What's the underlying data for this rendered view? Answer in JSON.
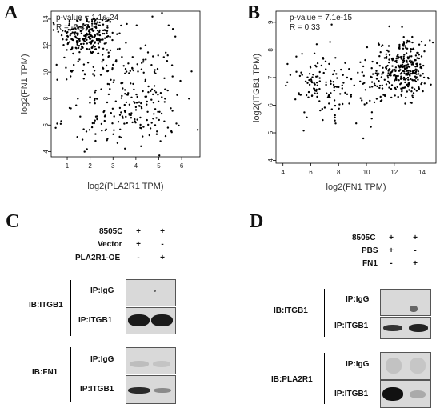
{
  "figure": {
    "panels": {
      "A": "A",
      "B": "B",
      "C": "C",
      "D": "D"
    }
  },
  "chart_data": [
    {
      "type": "scatter",
      "panel": "A",
      "title": "",
      "xlabel": "log2(PLA2R1 TPM)",
      "ylabel": "log2(FN1 TPM)",
      "xlim": [
        0.3,
        6.8
      ],
      "ylim": [
        3.6,
        14.6
      ],
      "xticks": [
        1,
        2,
        3,
        4,
        5,
        6
      ],
      "yticks": [
        4,
        6,
        8,
        10,
        12,
        14
      ],
      "annotations": [
        "p-value = 1.1e-24",
        "R = -0.47"
      ],
      "grid": false,
      "clusters": [
        {
          "cx": 1.9,
          "cy": 12.8,
          "sx": 0.6,
          "sy": 0.8,
          "n": 210
        },
        {
          "cx": 2.8,
          "cy": 10.5,
          "sx": 0.9,
          "sy": 1.3,
          "n": 90
        },
        {
          "cx": 4.2,
          "cy": 7.0,
          "sx": 0.9,
          "sy": 1.2,
          "n": 110
        },
        {
          "cx": 2.6,
          "cy": 6.5,
          "sx": 0.9,
          "sy": 1.0,
          "n": 55
        },
        {
          "cx": 5.2,
          "cy": 10.5,
          "sx": 0.7,
          "sy": 2.0,
          "n": 25
        }
      ]
    },
    {
      "type": "scatter",
      "panel": "B",
      "title": "",
      "xlabel": "log2(FN1 TPM)",
      "ylabel": "log2(ITGB1 TPM)",
      "xlim": [
        3.5,
        15
      ],
      "ylim": [
        3.9,
        9.4
      ],
      "xticks": [
        4,
        6,
        8,
        10,
        12,
        14
      ],
      "yticks": [
        4,
        5,
        6,
        7,
        8,
        9
      ],
      "annotations": [
        "p-value = 7.1e-15",
        "R = 0.33"
      ],
      "grid": false,
      "clusters": [
        {
          "cx": 12.8,
          "cy": 7.3,
          "sx": 0.9,
          "sy": 0.5,
          "n": 260
        },
        {
          "cx": 10.8,
          "cy": 7.0,
          "sx": 0.9,
          "sy": 0.6,
          "n": 70
        },
        {
          "cx": 6.8,
          "cy": 6.8,
          "sx": 1.1,
          "sy": 0.6,
          "n": 110
        },
        {
          "cx": 9.0,
          "cy": 6.2,
          "sx": 1.2,
          "sy": 0.9,
          "n": 25
        }
      ]
    }
  ],
  "blot_C": {
    "header_rows": [
      {
        "label": "8505C",
        "signs": [
          "+",
          "+"
        ]
      },
      {
        "label": "Vector",
        "signs": [
          "+",
          "-"
        ]
      },
      {
        "label": "PLA2R1-OE",
        "signs": [
          "-",
          "+"
        ]
      }
    ],
    "groups": [
      {
        "ib_label": "IB:ITGB1",
        "rows": [
          {
            "ip_label": "IP:IgG",
            "bands": [
              0.0,
              0.0
            ]
          },
          {
            "ip_label": "IP:ITGB1",
            "bands": [
              0.95,
              0.95
            ]
          }
        ]
      },
      {
        "ib_label": "IB:FN1",
        "rows": [
          {
            "ip_label": "IP:IgG",
            "bands": [
              0.1,
              0.08
            ]
          },
          {
            "ip_label": "IP:ITGB1",
            "bands": [
              0.85,
              0.35
            ]
          }
        ]
      }
    ]
  },
  "blot_D": {
    "header_rows": [
      {
        "label": "8505C",
        "signs": [
          "+",
          "+"
        ]
      },
      {
        "label": "PBS",
        "signs": [
          "+",
          "-"
        ]
      },
      {
        "label": "FN1",
        "signs": [
          "-",
          "+"
        ]
      }
    ],
    "groups": [
      {
        "ib_label": "IB:ITGB1",
        "rows": [
          {
            "ip_label": "IP:IgG",
            "bands": [
              0.0,
              0.35
            ]
          },
          {
            "ip_label": "IP:ITGB1",
            "bands": [
              0.8,
              0.85
            ]
          }
        ]
      },
      {
        "ib_label": "IB:PLA2R1",
        "rows": [
          {
            "ip_label": "IP:IgG",
            "bands": [
              0.1,
              0.12
            ]
          },
          {
            "ip_label": "IP:ITGB1",
            "bands": [
              0.95,
              0.3
            ]
          }
        ]
      }
    ]
  },
  "colors": {
    "point": "#000000",
    "blot_background": "#d9d9d9",
    "band": "#1a1a1a"
  }
}
